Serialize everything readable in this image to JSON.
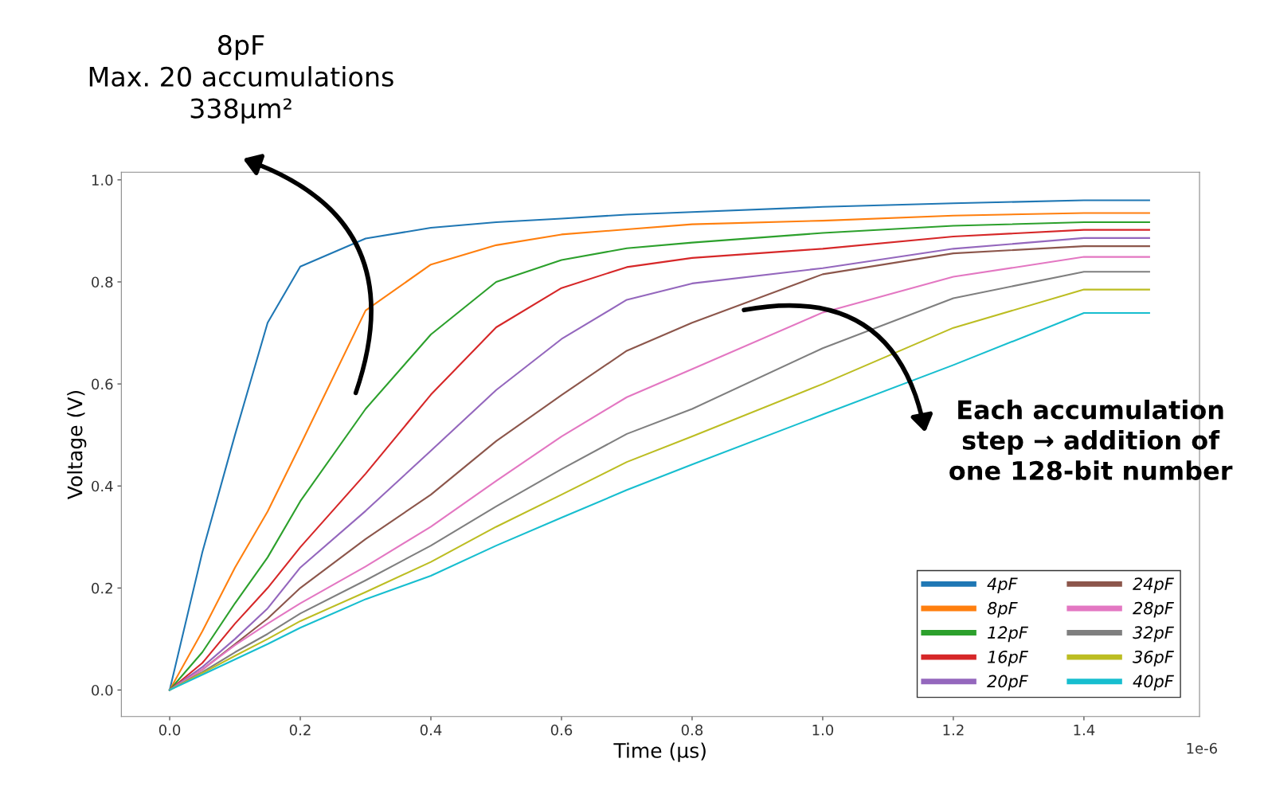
{
  "chart_data": {
    "type": "line",
    "xlabel": "Time (μs)",
    "ylabel": "Voltage (V)",
    "x": [
      0,
      0.05,
      0.1,
      0.15,
      0.2,
      0.3,
      0.4,
      0.5,
      0.6,
      0.7,
      0.8,
      1.0,
      1.2,
      1.4,
      1.5
    ],
    "series": [
      {
        "name": "4pF",
        "color": "#1f77b4",
        "values": [
          0.0,
          0.27,
          0.5,
          0.72,
          0.83,
          0.885,
          0.906,
          0.917,
          0.924,
          0.932,
          0.937,
          0.947,
          0.954,
          0.96,
          0.96
        ]
      },
      {
        "name": "8pF",
        "color": "#ff7f0e",
        "values": [
          0.0,
          0.115,
          0.24,
          0.35,
          0.48,
          0.744,
          0.834,
          0.872,
          0.893,
          0.903,
          0.913,
          0.92,
          0.93,
          0.935,
          0.935
        ]
      },
      {
        "name": "12pF",
        "color": "#2ca02c",
        "values": [
          0.0,
          0.074,
          0.17,
          0.26,
          0.37,
          0.551,
          0.697,
          0.8,
          0.843,
          0.866,
          0.877,
          0.896,
          0.91,
          0.917,
          0.917
        ]
      },
      {
        "name": "16pF",
        "color": "#d62728",
        "values": [
          0.0,
          0.053,
          0.13,
          0.2,
          0.28,
          0.424,
          0.579,
          0.711,
          0.788,
          0.829,
          0.847,
          0.865,
          0.889,
          0.902,
          0.902
        ]
      },
      {
        "name": "20pF",
        "color": "#9467bd",
        "values": [
          0.0,
          0.045,
          0.1,
          0.16,
          0.24,
          0.351,
          0.469,
          0.588,
          0.688,
          0.765,
          0.797,
          0.827,
          0.865,
          0.886,
          0.886
        ]
      },
      {
        "name": "24pF",
        "color": "#8c564b",
        "values": [
          0.0,
          0.04,
          0.09,
          0.14,
          0.2,
          0.296,
          0.383,
          0.488,
          0.578,
          0.665,
          0.72,
          0.815,
          0.856,
          0.87,
          0.87
        ]
      },
      {
        "name": "28pF",
        "color": "#e377c2",
        "values": [
          0.0,
          0.04,
          0.088,
          0.13,
          0.17,
          0.242,
          0.32,
          0.41,
          0.497,
          0.574,
          0.629,
          0.74,
          0.81,
          0.849,
          0.849
        ]
      },
      {
        "name": "32pF",
        "color": "#7f7f7f",
        "values": [
          0.0,
          0.035,
          0.074,
          0.11,
          0.15,
          0.215,
          0.283,
          0.36,
          0.433,
          0.502,
          0.551,
          0.67,
          0.768,
          0.82,
          0.82
        ]
      },
      {
        "name": "36pF",
        "color": "#bcbd22",
        "values": [
          0.0,
          0.033,
          0.067,
          0.1,
          0.135,
          0.192,
          0.251,
          0.32,
          0.383,
          0.447,
          0.497,
          0.6,
          0.71,
          0.785,
          0.785
        ]
      },
      {
        "name": "40pF",
        "color": "#17becf",
        "values": [
          0.0,
          0.03,
          0.06,
          0.09,
          0.122,
          0.178,
          0.224,
          0.283,
          0.338,
          0.392,
          0.442,
          0.54,
          0.637,
          0.739,
          0.739
        ]
      }
    ],
    "xlim": [
      -0.074,
      1.577
    ],
    "ylim": [
      -0.052,
      1.015
    ],
    "xticks": [
      {
        "value": 0,
        "label": "0.0"
      },
      0.2,
      0.4,
      0.6,
      0.8,
      {
        "value": 1,
        "label": "1.0"
      },
      1.2,
      1.4
    ],
    "yticks": [
      {
        "value": 0,
        "label": "0.0"
      },
      0.2,
      0.4,
      0.6,
      0.8,
      {
        "value": 1,
        "label": "1.0"
      }
    ],
    "grid": false,
    "legend": "bottom right",
    "marker": "none",
    "line_style": "solid",
    "annotations": [
      "1e-6",
      "8pF\nMax. 20 accumulations\n338μm²",
      "Each accumulation\nstep → addition of\none 128-bit number"
    ]
  }
}
